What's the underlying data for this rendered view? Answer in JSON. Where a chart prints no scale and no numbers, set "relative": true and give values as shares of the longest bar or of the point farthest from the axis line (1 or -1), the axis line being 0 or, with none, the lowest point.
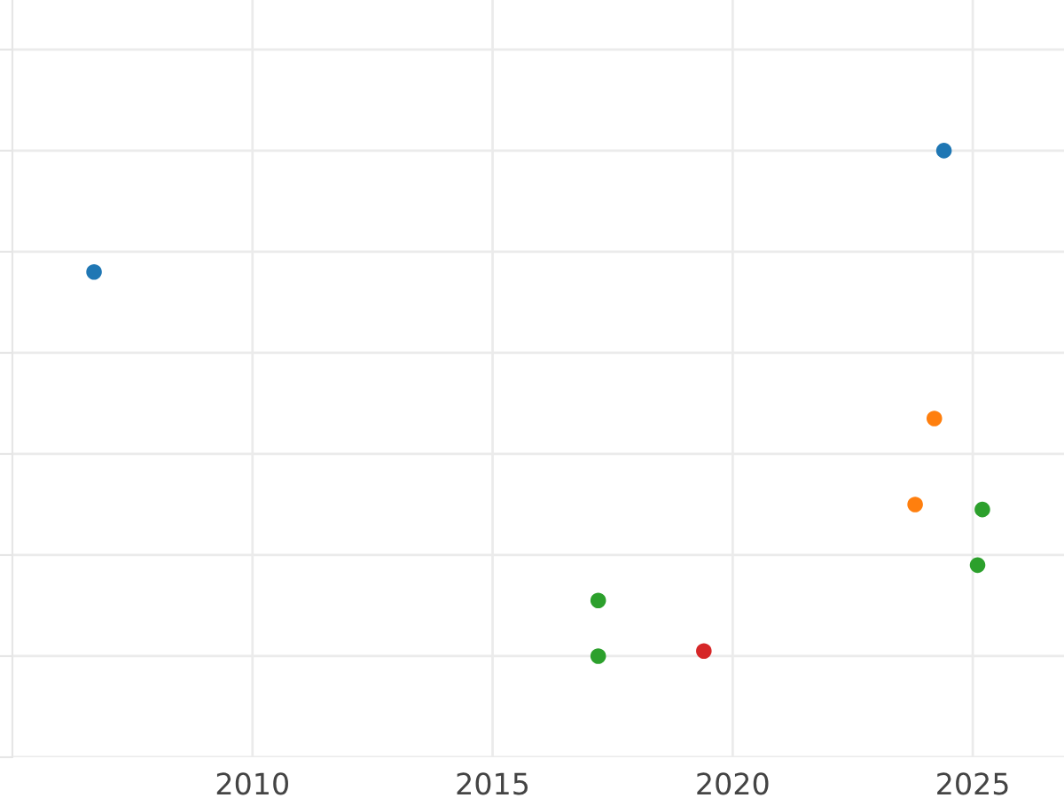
{
  "chart_data": {
    "type": "scatter",
    "relative": true,
    "grid": true,
    "marker": "circle",
    "legend": false,
    "xlim": [
      2005,
      2026.9
    ],
    "xticks": [
      2010,
      2015,
      2020,
      2025
    ],
    "series": [
      {
        "color": "#1f77b4",
        "x": [
          2006.7,
          2024.4
        ],
        "values": [
          0.76,
          1.0
        ]
      },
      {
        "color": "#ff7f0e",
        "x": [
          2024.2,
          2023.8
        ],
        "values": [
          0.47,
          0.3
        ]
      },
      {
        "color": "#2ca02c",
        "x": [
          2025.2,
          2025.1,
          2017.2,
          2017.2
        ],
        "values": [
          0.29,
          0.18,
          0.11,
          0.0
        ]
      },
      {
        "color": "#d62728",
        "x": [
          2019.4
        ],
        "values": [
          0.01
        ]
      }
    ]
  }
}
